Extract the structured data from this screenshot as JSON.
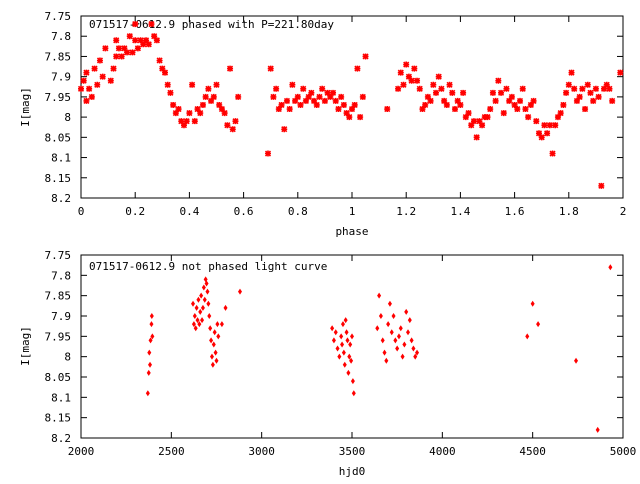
{
  "chart_data": [
    {
      "type": "scatter",
      "title": "071517-0612.9 phased with P=221.80day",
      "xlabel": "phase",
      "ylabel": "I[mag]",
      "xlim": [
        0,
        2
      ],
      "ylim": [
        8.2,
        7.75
      ],
      "y_inverted": true,
      "xticks": [
        "0",
        "0.2",
        "0.4",
        "0.6",
        "0.8",
        "1",
        "1.2",
        "1.4",
        "1.6",
        "1.8",
        "2"
      ],
      "yticks": [
        "7.75",
        "7.8",
        "7.85",
        "7.9",
        "7.95",
        "8",
        "8.05",
        "8.1",
        "8.15",
        "8.2"
      ],
      "marker_color": "#ff0000",
      "grid": false,
      "x": [
        0.0,
        0.01,
        0.02,
        0.02,
        0.03,
        0.04,
        0.05,
        0.06,
        0.07,
        0.08,
        0.09,
        0.11,
        0.12,
        0.13,
        0.13,
        0.14,
        0.15,
        0.16,
        0.17,
        0.18,
        0.19,
        0.2,
        0.2,
        0.21,
        0.22,
        0.23,
        0.24,
        0.25,
        0.26,
        0.27,
        0.28,
        0.29,
        0.3,
        0.31,
        0.32,
        0.33,
        0.34,
        0.35,
        0.36,
        0.37,
        0.38,
        0.39,
        0.4,
        0.41,
        0.42,
        0.43,
        0.44,
        0.45,
        0.46,
        0.47,
        0.48,
        0.49,
        0.5,
        0.51,
        0.52,
        0.53,
        0.54,
        0.55,
        0.56,
        0.57,
        0.58,
        0.69,
        0.7,
        0.71,
        0.72,
        0.73,
        0.74,
        0.75,
        0.76,
        0.77,
        0.78,
        0.79,
        0.8,
        0.81,
        0.82,
        0.83,
        0.84,
        0.85,
        0.86,
        0.87,
        0.88,
        0.89,
        0.9,
        0.91,
        0.92,
        0.93,
        0.94,
        0.95,
        0.96,
        0.97,
        0.98,
        0.99,
        1.0,
        1.01,
        1.02,
        1.03,
        1.04,
        1.05,
        1.13,
        1.17,
        1.18,
        1.19,
        1.2,
        1.21,
        1.22,
        1.23,
        1.24,
        1.25,
        1.26,
        1.27,
        1.28,
        1.29,
        1.3,
        1.31,
        1.32,
        1.33,
        1.34,
        1.35,
        1.36,
        1.37,
        1.38,
        1.39,
        1.4,
        1.41,
        1.42,
        1.43,
        1.44,
        1.45,
        1.46,
        1.47,
        1.48,
        1.49,
        1.5,
        1.51,
        1.52,
        1.53,
        1.54,
        1.55,
        1.56,
        1.57,
        1.58,
        1.59,
        1.6,
        1.61,
        1.62,
        1.63,
        1.64,
        1.65,
        1.66,
        1.67,
        1.68,
        1.69,
        1.7,
        1.71,
        1.72,
        1.73,
        1.74,
        1.75,
        1.76,
        1.77,
        1.78,
        1.79,
        1.8,
        1.81,
        1.82,
        1.83,
        1.84,
        1.85,
        1.86,
        1.87,
        1.88,
        1.89,
        1.9,
        1.91,
        1.92,
        1.93,
        1.94,
        1.95,
        1.96,
        1.99
      ],
      "y": [
        7.93,
        7.91,
        7.96,
        7.89,
        7.93,
        7.95,
        7.88,
        7.92,
        7.86,
        7.9,
        7.83,
        7.91,
        7.88,
        7.81,
        7.85,
        7.83,
        7.85,
        7.83,
        7.84,
        7.8,
        7.84,
        7.77,
        7.81,
        7.83,
        7.81,
        7.82,
        7.81,
        7.82,
        7.77,
        7.8,
        7.81,
        7.86,
        7.88,
        7.89,
        7.92,
        7.94,
        7.97,
        7.99,
        7.98,
        8.01,
        8.02,
        8.01,
        7.99,
        7.92,
        8.01,
        7.98,
        7.99,
        7.97,
        7.95,
        7.93,
        7.96,
        7.95,
        7.92,
        7.97,
        7.98,
        7.99,
        8.02,
        7.88,
        8.03,
        8.01,
        7.95,
        8.09,
        7.88,
        7.95,
        7.93,
        7.98,
        7.97,
        8.03,
        7.96,
        7.98,
        7.92,
        7.96,
        7.95,
        7.97,
        7.93,
        7.96,
        7.95,
        7.94,
        7.96,
        7.97,
        7.95,
        7.93,
        7.96,
        7.94,
        7.95,
        7.94,
        7.96,
        7.98,
        7.95,
        7.97,
        7.99,
        8.0,
        7.98,
        7.97,
        7.88,
        8.0,
        7.95,
        7.85,
        7.98,
        7.93,
        7.89,
        7.92,
        7.87,
        7.9,
        7.91,
        7.88,
        7.91,
        7.93,
        7.98,
        7.97,
        7.95,
        7.96,
        7.92,
        7.94,
        7.9,
        7.93,
        7.96,
        7.97,
        7.92,
        7.94,
        7.98,
        7.96,
        7.97,
        7.94,
        8.0,
        7.99,
        8.02,
        8.01,
        8.05,
        8.01,
        8.02,
        8.0,
        8.0,
        7.98,
        7.94,
        7.96,
        7.91,
        7.94,
        7.99,
        7.93,
        7.96,
        7.95,
        7.97,
        7.98,
        7.96,
        7.93,
        7.98,
        8.0,
        7.97,
        7.96,
        8.01,
        8.04,
        8.05,
        8.02,
        8.04,
        8.02,
        8.09,
        8.02,
        8.0,
        7.99,
        7.97,
        7.94,
        7.92,
        7.89,
        7.93,
        7.96,
        7.95,
        7.93,
        7.98,
        7.92,
        7.94,
        7.96,
        7.93,
        7.95,
        8.17,
        7.93,
        7.92,
        7.93,
        7.96,
        7.89
      ]
    },
    {
      "type": "scatter",
      "title": "071517-0612.9 not phased light curve",
      "xlabel": "hjd0",
      "ylabel": "I[mag]",
      "xlim": [
        2000,
        5000
      ],
      "ylim": [
        8.2,
        7.75
      ],
      "y_inverted": true,
      "xticks": [
        "2000",
        "2500",
        "3000",
        "3500",
        "4000",
        "4500",
        "5000"
      ],
      "yticks": [
        "7.75",
        "7.8",
        "7.85",
        "7.9",
        "7.95",
        "8",
        "8.05",
        "8.1",
        "8.15",
        "8.2"
      ],
      "marker_color": "#ff0000",
      "grid": false,
      "x": [
        2370,
        2375,
        2378,
        2382,
        2385,
        2390,
        2392,
        2395,
        2620,
        2625,
        2630,
        2635,
        2640,
        2645,
        2650,
        2655,
        2660,
        2665,
        2670,
        2675,
        2680,
        2685,
        2690,
        2695,
        2700,
        2705,
        2710,
        2715,
        2720,
        2725,
        2730,
        2735,
        2740,
        2745,
        2750,
        2755,
        2760,
        2780,
        2800,
        2880,
        3390,
        3400,
        3410,
        3420,
        3430,
        3440,
        3445,
        3450,
        3455,
        3460,
        3465,
        3470,
        3475,
        3480,
        3485,
        3490,
        3495,
        3500,
        3505,
        3510,
        3640,
        3650,
        3660,
        3670,
        3680,
        3690,
        3700,
        3710,
        3720,
        3730,
        3740,
        3750,
        3760,
        3770,
        3780,
        3790,
        3800,
        3810,
        3820,
        3830,
        3840,
        3850,
        3860,
        4470,
        4500,
        4530,
        4740,
        4860,
        4930
      ],
      "y": [
        8.09,
        8.04,
        7.99,
        8.02,
        7.96,
        7.92,
        7.9,
        7.95,
        7.87,
        7.92,
        7.9,
        7.93,
        7.88,
        7.91,
        7.86,
        7.92,
        7.89,
        7.85,
        7.91,
        7.88,
        7.83,
        7.86,
        7.81,
        7.82,
        7.84,
        7.87,
        7.9,
        7.93,
        7.96,
        8.0,
        8.02,
        7.97,
        7.94,
        7.99,
        8.01,
        7.92,
        7.95,
        7.92,
        7.88,
        7.84,
        7.93,
        7.96,
        7.94,
        7.98,
        8.0,
        7.95,
        7.97,
        7.92,
        7.99,
        8.02,
        7.91,
        7.94,
        7.96,
        8.04,
        8.0,
        7.97,
        8.01,
        7.95,
        8.06,
        8.09,
        7.93,
        7.85,
        7.9,
        7.96,
        7.99,
        8.01,
        7.92,
        7.87,
        7.94,
        7.9,
        7.96,
        7.98,
        7.95,
        7.93,
        8.0,
        7.97,
        7.89,
        7.94,
        7.91,
        7.96,
        7.98,
        8.0,
        7.99,
        7.95,
        7.87,
        7.92,
        8.01,
        8.18,
        7.78
      ]
    }
  ]
}
